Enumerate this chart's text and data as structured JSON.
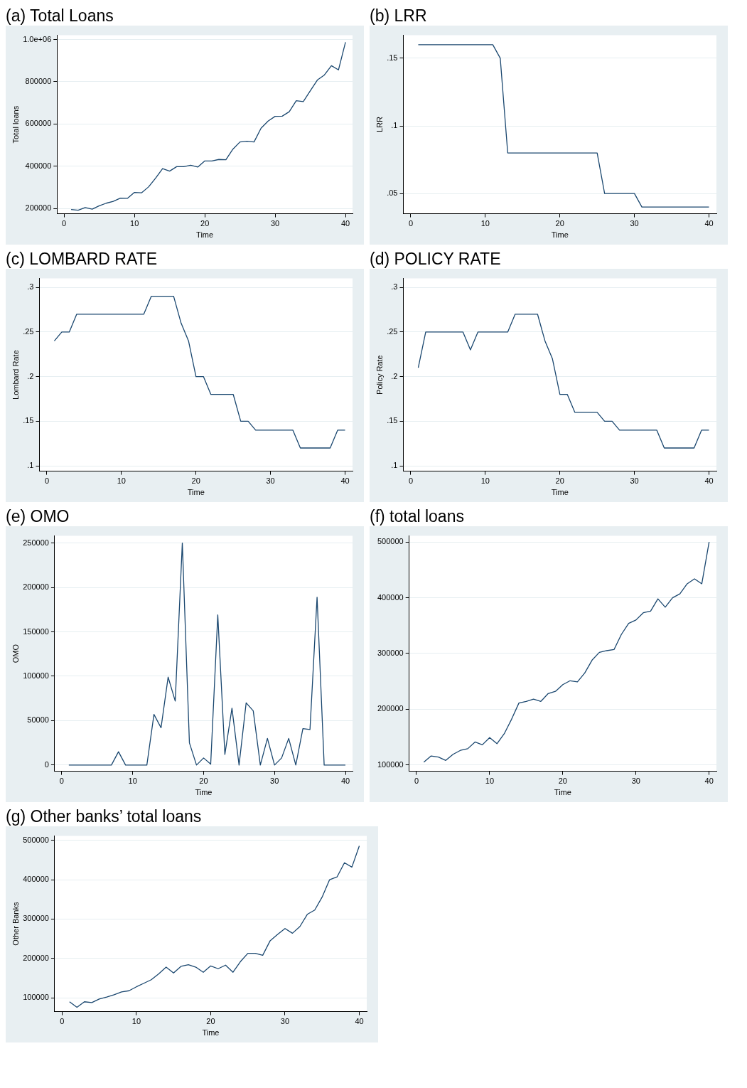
{
  "chart_data": [
    {
      "type": "line",
      "title": "(a) Total Loans",
      "xlabel": "Time",
      "ylabel": "Total loans",
      "x": [
        1,
        2,
        3,
        4,
        5,
        6,
        7,
        8,
        9,
        10,
        11,
        12,
        13,
        14,
        15,
        16,
        17,
        18,
        19,
        20,
        21,
        22,
        23,
        24,
        25,
        26,
        27,
        28,
        29,
        30,
        31,
        32,
        33,
        34,
        35,
        36,
        37,
        38,
        39,
        40
      ],
      "color": "#1a476f",
      "marker": "none",
      "grid": "y",
      "values": [
        195000,
        192000,
        204000,
        197000,
        213000,
        225000,
        234000,
        249000,
        248000,
        276000,
        274000,
        302000,
        343000,
        389000,
        377000,
        398000,
        398000,
        405000,
        396000,
        425000,
        425000,
        432000,
        431000,
        481000,
        515000,
        518000,
        515000,
        580000,
        614000,
        636000,
        637000,
        658000,
        710000,
        706000,
        757000,
        808000,
        832000,
        876000,
        856000,
        987000
      ],
      "xlim": [
        -1,
        41
      ],
      "xticks": [
        0,
        10,
        20,
        30,
        40
      ],
      "ylim": [
        175000,
        1020000
      ],
      "yticks": [
        200000,
        400000,
        600000,
        800000,
        {
          "value": 1000000,
          "label": "1.0e+06"
        }
      ]
    },
    {
      "type": "line",
      "title": "(b) LRR",
      "xlabel": "Time",
      "ylabel": "LRR",
      "x": [
        1,
        2,
        3,
        4,
        5,
        6,
        7,
        8,
        9,
        10,
        11,
        12,
        13,
        14,
        15,
        16,
        17,
        18,
        19,
        20,
        21,
        22,
        23,
        24,
        25,
        26,
        27,
        28,
        29,
        30,
        31,
        32,
        33,
        34,
        35,
        36,
        37,
        38,
        39,
        40
      ],
      "color": "#1a476f",
      "marker": "none",
      "grid": "y",
      "values": [
        0.16,
        0.16,
        0.16,
        0.16,
        0.16,
        0.16,
        0.16,
        0.16,
        0.16,
        0.16,
        0.16,
        0.15,
        0.08,
        0.08,
        0.08,
        0.08,
        0.08,
        0.08,
        0.08,
        0.08,
        0.08,
        0.08,
        0.08,
        0.08,
        0.08,
        0.05,
        0.05,
        0.05,
        0.05,
        0.05,
        0.04,
        0.04,
        0.04,
        0.04,
        0.04,
        0.04,
        0.04,
        0.04,
        0.04,
        0.04
      ],
      "xlim": [
        -1,
        41
      ],
      "xticks": [
        0,
        10,
        20,
        30,
        40
      ],
      "ylim": [
        0.035,
        0.167
      ],
      "yticks": [
        {
          "value": 0.05,
          "label": ".05"
        },
        {
          "value": 0.1,
          "label": ".1"
        },
        {
          "value": 0.15,
          "label": ".15"
        }
      ]
    },
    {
      "type": "line",
      "title": "(c) LOMBARD RATE",
      "xlabel": "Time",
      "ylabel": "Lombard Rate",
      "x": [
        1,
        2,
        3,
        4,
        5,
        6,
        7,
        8,
        9,
        10,
        11,
        12,
        13,
        14,
        15,
        16,
        17,
        18,
        19,
        20,
        21,
        22,
        23,
        24,
        25,
        26,
        27,
        28,
        29,
        30,
        31,
        32,
        33,
        34,
        35,
        36,
        37,
        38,
        39,
        40
      ],
      "color": "#1a476f",
      "marker": "none",
      "grid": "y",
      "values": [
        0.24,
        0.25,
        0.25,
        0.27,
        0.27,
        0.27,
        0.27,
        0.27,
        0.27,
        0.27,
        0.27,
        0.27,
        0.27,
        0.29,
        0.29,
        0.29,
        0.29,
        0.26,
        0.24,
        0.2,
        0.2,
        0.18,
        0.18,
        0.18,
        0.18,
        0.15,
        0.15,
        0.14,
        0.14,
        0.14,
        0.14,
        0.14,
        0.14,
        0.12,
        0.12,
        0.12,
        0.12,
        0.12,
        0.14,
        0.14
      ],
      "xlim": [
        -1,
        41
      ],
      "xticks": [
        0,
        10,
        20,
        30,
        40
      ],
      "ylim": [
        0.094,
        0.31
      ],
      "yticks": [
        {
          "value": 0.1,
          "label": ".1"
        },
        {
          "value": 0.15,
          "label": ".15"
        },
        {
          "value": 0.2,
          "label": ".2"
        },
        {
          "value": 0.25,
          "label": ".25"
        },
        {
          "value": 0.3,
          "label": ".3"
        }
      ]
    },
    {
      "type": "line",
      "title": "(d) POLICY RATE",
      "xlabel": "Time",
      "ylabel": "Policy Rate",
      "x": [
        1,
        2,
        3,
        4,
        5,
        6,
        7,
        8,
        9,
        10,
        11,
        12,
        13,
        14,
        15,
        16,
        17,
        18,
        19,
        20,
        21,
        22,
        23,
        24,
        25,
        26,
        27,
        28,
        29,
        30,
        31,
        32,
        33,
        34,
        35,
        36,
        37,
        38,
        39,
        40
      ],
      "color": "#1a476f",
      "marker": "none",
      "grid": "y",
      "values": [
        0.21,
        0.25,
        0.25,
        0.25,
        0.25,
        0.25,
        0.25,
        0.23,
        0.25,
        0.25,
        0.25,
        0.25,
        0.25,
        0.27,
        0.27,
        0.27,
        0.27,
        0.24,
        0.22,
        0.18,
        0.18,
        0.16,
        0.16,
        0.16,
        0.16,
        0.15,
        0.15,
        0.14,
        0.14,
        0.14,
        0.14,
        0.14,
        0.14,
        0.12,
        0.12,
        0.12,
        0.12,
        0.12,
        0.14,
        0.14
      ],
      "xlim": [
        -1,
        41
      ],
      "xticks": [
        0,
        10,
        20,
        30,
        40
      ],
      "ylim": [
        0.094,
        0.31
      ],
      "yticks": [
        {
          "value": 0.1,
          "label": ".1"
        },
        {
          "value": 0.15,
          "label": ".15"
        },
        {
          "value": 0.2,
          "label": ".2"
        },
        {
          "value": 0.25,
          "label": ".25"
        },
        {
          "value": 0.3,
          "label": ".3"
        }
      ]
    },
    {
      "type": "line",
      "title": "(e) OMO",
      "xlabel": "Time",
      "ylabel": "OMO",
      "x": [
        1,
        2,
        3,
        4,
        5,
        6,
        7,
        8,
        9,
        10,
        11,
        12,
        13,
        14,
        15,
        16,
        17,
        18,
        19,
        20,
        21,
        22,
        23,
        24,
        25,
        26,
        27,
        28,
        29,
        30,
        31,
        32,
        33,
        34,
        35,
        36,
        37,
        38,
        39,
        40
      ],
      "color": "#1a476f",
      "marker": "none",
      "grid": "y",
      "values": [
        0,
        0,
        0,
        0,
        0,
        0,
        0,
        15000,
        0,
        0,
        0,
        0,
        57000,
        42000,
        99000,
        72000,
        250000,
        25000,
        0,
        8000,
        1000,
        169000,
        12000,
        64000,
        0,
        70000,
        61000,
        0,
        30000,
        0,
        8000,
        30000,
        0,
        41000,
        40000,
        189000,
        0,
        0,
        0,
        0
      ],
      "xlim": [
        -1,
        41
      ],
      "xticks": [
        0,
        10,
        20,
        30,
        40
      ],
      "ylim": [
        -7000,
        258000
      ],
      "yticks": [
        0,
        50000,
        100000,
        150000,
        200000,
        250000
      ]
    },
    {
      "type": "line",
      "title": "(f) total loans",
      "xlabel": "Time",
      "x": [
        1,
        2,
        3,
        4,
        5,
        6,
        7,
        8,
        9,
        10,
        11,
        12,
        13,
        14,
        15,
        16,
        17,
        18,
        19,
        20,
        21,
        22,
        23,
        24,
        25,
        26,
        27,
        28,
        29,
        30,
        31,
        32,
        33,
        34,
        35,
        36,
        37,
        38,
        39,
        40
      ],
      "color": "#1a476f",
      "marker": "none",
      "grid": "y",
      "values": [
        105000,
        116000,
        114000,
        108000,
        119000,
        126000,
        129000,
        141000,
        136000,
        149000,
        138000,
        156000,
        182000,
        211000,
        214000,
        218000,
        214000,
        228000,
        232000,
        244000,
        251000,
        249000,
        265000,
        288000,
        302000,
        305000,
        307000,
        334000,
        354000,
        360000,
        373000,
        376000,
        398000,
        383000,
        400000,
        407000,
        425000,
        434000,
        425000,
        500000
      ],
      "xlim": [
        -1,
        41
      ],
      "xticks": [
        0,
        10,
        20,
        30,
        40
      ],
      "ylim": [
        88500,
        511000
      ],
      "yticks": [
        100000,
        200000,
        300000,
        400000,
        500000
      ]
    },
    {
      "type": "line",
      "title": "(g) Other banks’ total loans",
      "xlabel": "Time",
      "ylabel": "Other Banks",
      "x": [
        1,
        2,
        3,
        4,
        5,
        6,
        7,
        8,
        9,
        10,
        11,
        12,
        13,
        14,
        15,
        16,
        17,
        18,
        19,
        20,
        21,
        22,
        23,
        24,
        25,
        26,
        27,
        28,
        29,
        30,
        31,
        32,
        33,
        34,
        35,
        36,
        37,
        38,
        39,
        40
      ],
      "color": "#1a476f",
      "marker": "none",
      "grid": "y",
      "values": [
        90000,
        76000,
        90000,
        88000,
        97000,
        102000,
        108000,
        115000,
        118000,
        128000,
        137000,
        146000,
        161000,
        178000,
        163000,
        180000,
        184000,
        178000,
        165000,
        181000,
        174000,
        183000,
        165000,
        192000,
        213000,
        213000,
        208000,
        245000,
        261000,
        276000,
        264000,
        281000,
        312000,
        323000,
        356000,
        400000,
        407000,
        443000,
        432000,
        486000
      ],
      "xlim": [
        -1,
        41
      ],
      "xticks": [
        0,
        10,
        20,
        30,
        40
      ],
      "ylim": [
        65000,
        511000
      ],
      "yticks": [
        100000,
        200000,
        300000,
        400000,
        500000
      ]
    }
  ]
}
